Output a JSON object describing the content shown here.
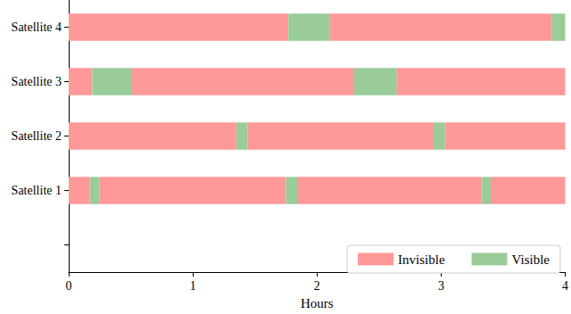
{
  "chart_data": {
    "type": "timeline",
    "orientation": "horizontal",
    "categories": [
      null,
      "Satellite 1",
      "Satellite 2",
      "Satellite 3",
      "Satellite 4"
    ],
    "xlabel": "Hours",
    "xlim": [
      0,
      4
    ],
    "xticks": [
      0,
      1,
      2,
      3,
      4
    ],
    "grid": false,
    "legend": "lower right",
    "series": [
      {
        "name": "Invisible",
        "color": "#ff9999",
        "intervals": [
          {
            "category": "Satellite 1",
            "start": 0,
            "end": 0.17
          },
          {
            "category": "Satellite 1",
            "start": 0.25,
            "end": 1.75
          },
          {
            "category": "Satellite 1",
            "start": 1.84,
            "end": 3.33
          },
          {
            "category": "Satellite 1",
            "start": 3.4,
            "end": 4
          },
          {
            "category": "Satellite 2",
            "start": 0,
            "end": 1.35
          },
          {
            "category": "Satellite 2",
            "start": 1.44,
            "end": 2.94
          },
          {
            "category": "Satellite 2",
            "start": 3.03,
            "end": 4
          },
          {
            "category": "Satellite 3",
            "start": 0,
            "end": 0.19
          },
          {
            "category": "Satellite 3",
            "start": 0.51,
            "end": 2.3
          },
          {
            "category": "Satellite 3",
            "start": 2.64,
            "end": 4
          },
          {
            "category": "Satellite 4",
            "start": 0,
            "end": 1.77
          },
          {
            "category": "Satellite 4",
            "start": 2.1,
            "end": 3.89
          }
        ]
      },
      {
        "name": "Visible",
        "color": "#99cc99",
        "intervals": [
          {
            "category": "Satellite 1",
            "start": 0.17,
            "end": 0.25
          },
          {
            "category": "Satellite 1",
            "start": 1.75,
            "end": 1.84
          },
          {
            "category": "Satellite 1",
            "start": 3.33,
            "end": 3.4
          },
          {
            "category": "Satellite 2",
            "start": 1.35,
            "end": 1.44
          },
          {
            "category": "Satellite 2",
            "start": 2.94,
            "end": 3.03
          },
          {
            "category": "Satellite 3",
            "start": 0.19,
            "end": 0.51
          },
          {
            "category": "Satellite 3",
            "start": 2.3,
            "end": 2.64
          },
          {
            "category": "Satellite 4",
            "start": 1.77,
            "end": 2.1
          },
          {
            "category": "Satellite 4",
            "start": 3.89,
            "end": 4
          }
        ]
      }
    ]
  }
}
